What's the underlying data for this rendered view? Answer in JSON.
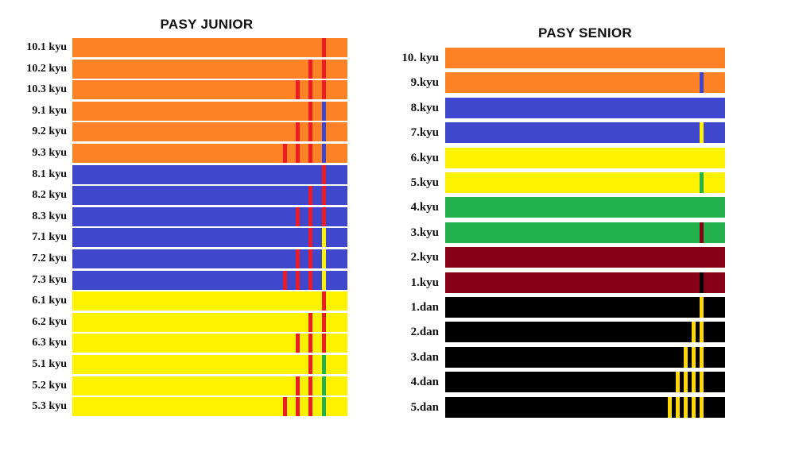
{
  "colors": {
    "orange": "#FF8126",
    "blue": "#3F48CC",
    "yellow": "#FFF200",
    "green": "#22B14C",
    "maroon": "#880015",
    "black": "#000000",
    "red": "#ED1C24",
    "gold": "#FFD700"
  },
  "junior": {
    "title": "PASY JUNIOR",
    "belts": [
      {
        "label": "10.1 kyu",
        "color": "orange",
        "stripes": [
          "red"
        ]
      },
      {
        "label": "10.2 kyu",
        "color": "orange",
        "stripes": [
          "red",
          "red"
        ]
      },
      {
        "label": "10.3 kyu",
        "color": "orange",
        "stripes": [
          "red",
          "red",
          "red"
        ]
      },
      {
        "label": "9.1 kyu",
        "color": "orange",
        "stripes": [
          "red",
          "blue"
        ]
      },
      {
        "label": "9.2 kyu",
        "color": "orange",
        "stripes": [
          "red",
          "red",
          "blue"
        ]
      },
      {
        "label": "9.3 kyu",
        "color": "orange",
        "stripes": [
          "red",
          "red",
          "red",
          "blue"
        ]
      },
      {
        "label": "8.1 kyu",
        "color": "blue",
        "stripes": [
          "red"
        ]
      },
      {
        "label": "8.2 kyu",
        "color": "blue",
        "stripes": [
          "red",
          "red"
        ]
      },
      {
        "label": "8.3 kyu",
        "color": "blue",
        "stripes": [
          "red",
          "red",
          "red"
        ]
      },
      {
        "label": "7.1 kyu",
        "color": "blue",
        "stripes": [
          "red",
          "yellow"
        ]
      },
      {
        "label": "7.2 kyu",
        "color": "blue",
        "stripes": [
          "red",
          "red",
          "yellow"
        ]
      },
      {
        "label": "7.3 kyu",
        "color": "blue",
        "stripes": [
          "red",
          "red",
          "red",
          "yellow"
        ]
      },
      {
        "label": "6.1 kyu",
        "color": "yellow",
        "stripes": [
          "red"
        ]
      },
      {
        "label": "6.2 kyu",
        "color": "yellow",
        "stripes": [
          "red",
          "red"
        ]
      },
      {
        "label": "6.3 kyu",
        "color": "yellow",
        "stripes": [
          "red",
          "red",
          "red"
        ]
      },
      {
        "label": "5.1 kyu",
        "color": "yellow",
        "stripes": [
          "red",
          "green"
        ]
      },
      {
        "label": "5.2 kyu",
        "color": "yellow",
        "stripes": [
          "red",
          "red",
          "green"
        ]
      },
      {
        "label": "5.3 kyu",
        "color": "yellow",
        "stripes": [
          "red",
          "red",
          "red",
          "green"
        ]
      }
    ]
  },
  "senior": {
    "title": "PASY SENIOR",
    "belts": [
      {
        "label": "10. kyu",
        "color": "orange",
        "stripes": []
      },
      {
        "label": "9.kyu",
        "color": "orange",
        "stripes": [
          "blue"
        ]
      },
      {
        "label": "8.kyu",
        "color": "blue",
        "stripes": []
      },
      {
        "label": "7.kyu",
        "color": "blue",
        "stripes": [
          "yellow"
        ]
      },
      {
        "label": "6.kyu",
        "color": "yellow",
        "stripes": []
      },
      {
        "label": "5.kyu",
        "color": "yellow",
        "stripes": [
          "green"
        ]
      },
      {
        "label": "4.kyu",
        "color": "green",
        "stripes": []
      },
      {
        "label": "3.kyu",
        "color": "green",
        "stripes": [
          "maroon"
        ]
      },
      {
        "label": "2.kyu",
        "color": "maroon",
        "stripes": []
      },
      {
        "label": "1.kyu",
        "color": "maroon",
        "stripes": [
          "black"
        ]
      },
      {
        "label": "1.dan",
        "color": "black",
        "stripes": [
          "gold"
        ]
      },
      {
        "label": "2.dan",
        "color": "black",
        "stripes": [
          "gold",
          "gold"
        ]
      },
      {
        "label": "3.dan",
        "color": "black",
        "stripes": [
          "gold",
          "gold",
          "gold"
        ]
      },
      {
        "label": "4.dan",
        "color": "black",
        "stripes": [
          "gold",
          "gold",
          "gold",
          "gold"
        ]
      },
      {
        "label": "5.dan",
        "color": "black",
        "stripes": [
          "gold",
          "gold",
          "gold",
          "gold",
          "gold"
        ]
      }
    ]
  }
}
